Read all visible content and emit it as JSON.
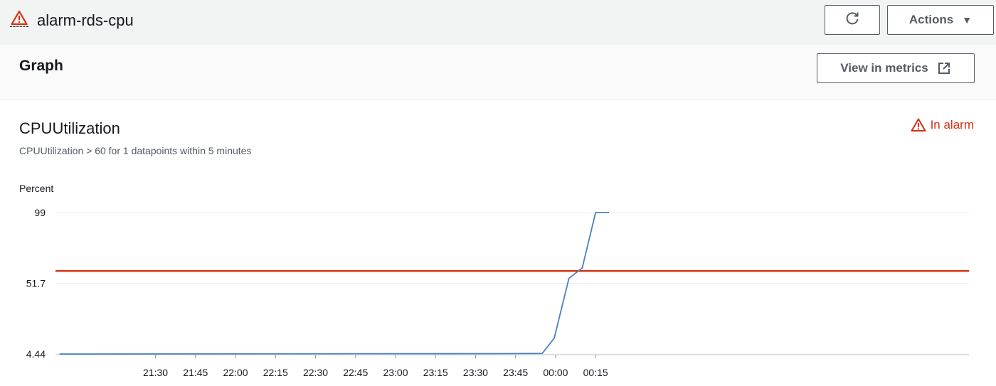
{
  "header": {
    "title": "alarm-rds-cpu",
    "alarm_icon": "warning-triangle-icon",
    "refresh_icon": "refresh-icon",
    "actions_label": "Actions",
    "actions_icon": "caret-down-icon"
  },
  "graph_panel": {
    "title": "Graph",
    "view_in_metrics_label": "View in metrics",
    "external_link_icon": "external-link-icon"
  },
  "chart_panel": {
    "title": "CPUUtilization",
    "subtitle": "CPUUtilization > 60 for 1 datapoints within 5 minutes",
    "status_label": "In alarm",
    "status_color": "#d13212"
  },
  "chart_data": {
    "type": "line",
    "ylabel": "Percent",
    "yticks": [
      4.44,
      51.7,
      99
    ],
    "ylim": [
      4.44,
      99
    ],
    "xlim": [
      -37.5,
      305
    ],
    "x_ticks": [
      {
        "value": 0,
        "label": "21:30"
      },
      {
        "value": 15,
        "label": "21:45"
      },
      {
        "value": 30,
        "label": "22:00"
      },
      {
        "value": 45,
        "label": "22:15"
      },
      {
        "value": 60,
        "label": "22:30"
      },
      {
        "value": 75,
        "label": "22:45"
      },
      {
        "value": 90,
        "label": "23:00"
      },
      {
        "value": 105,
        "label": "23:15"
      },
      {
        "value": 120,
        "label": "23:30"
      },
      {
        "value": 135,
        "label": "23:45"
      },
      {
        "value": 150,
        "label": "00:00"
      },
      {
        "value": 165,
        "label": "00:15"
      }
    ],
    "threshold": {
      "value": 60,
      "color": "#d13212"
    },
    "series": [
      {
        "color": "#4a7fc1",
        "points": [
          [
            -36,
            4.44
          ],
          [
            130,
            4.7
          ],
          [
            145,
            4.8
          ],
          [
            149.5,
            15
          ],
          [
            155,
            55
          ],
          [
            160,
            62
          ],
          [
            165,
            99
          ],
          [
            170,
            99
          ]
        ]
      }
    ],
    "grid": true
  }
}
